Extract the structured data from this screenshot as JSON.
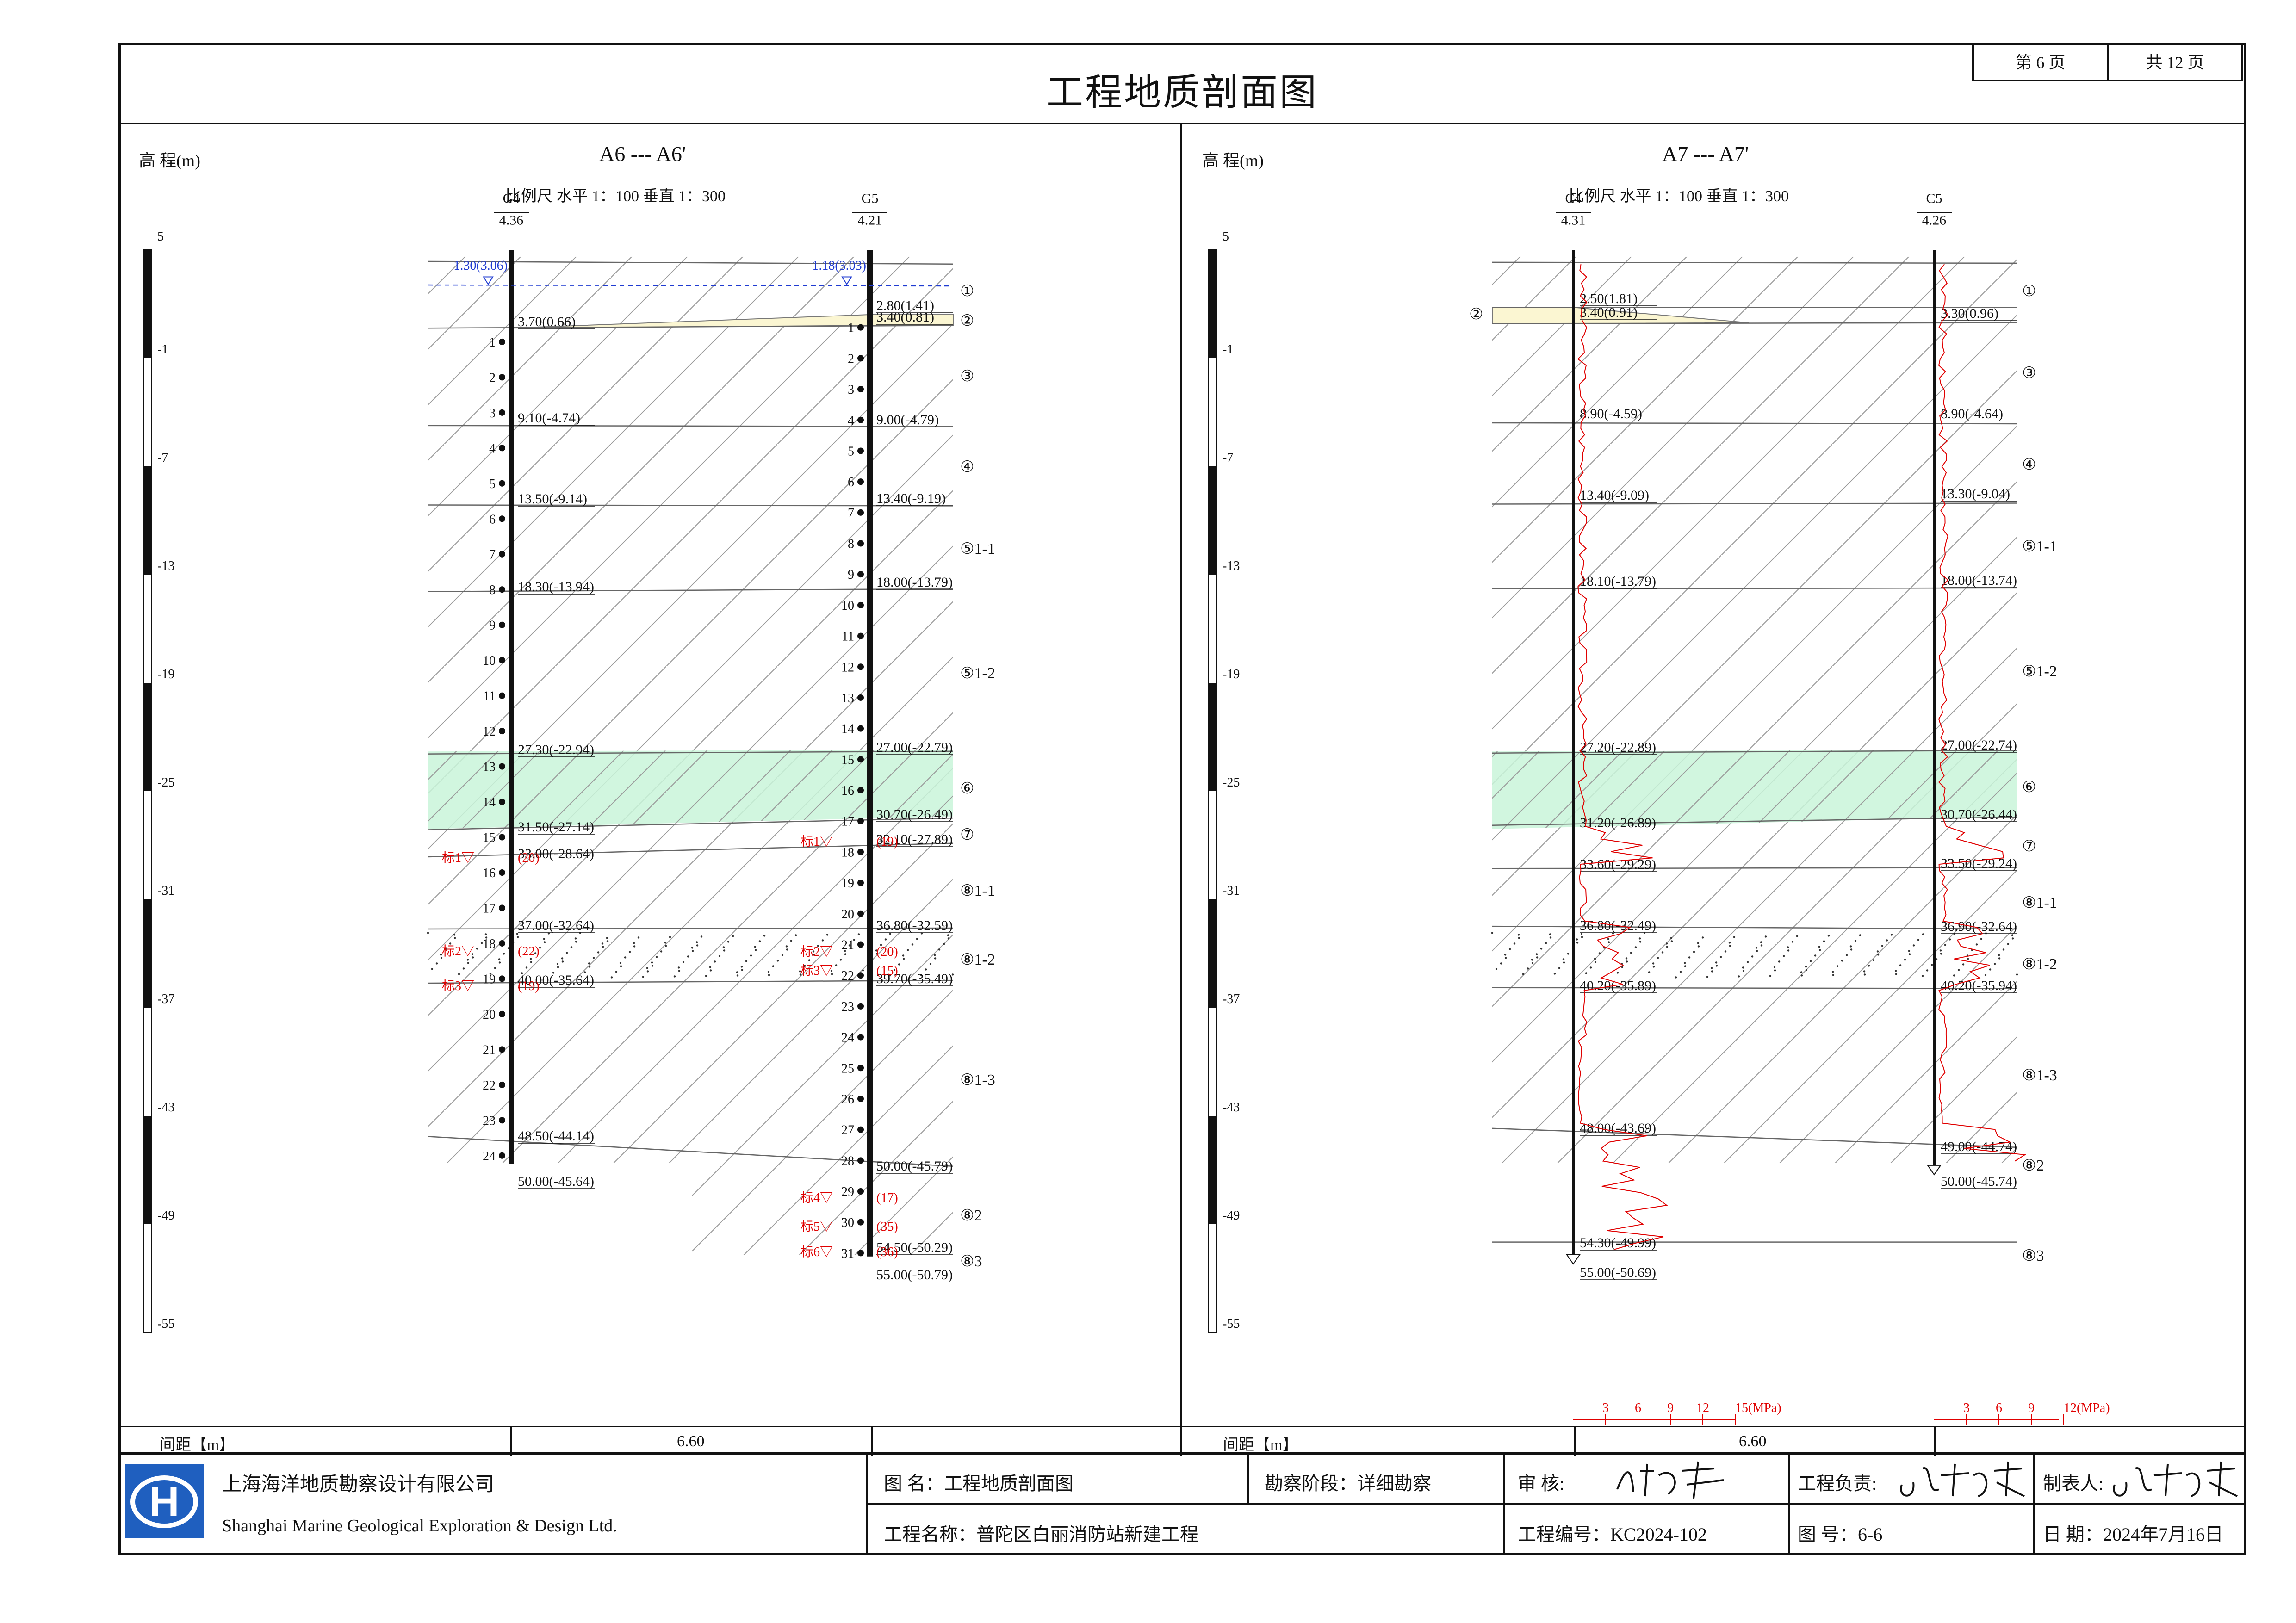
{
  "page": {
    "current_label": "第 6 页",
    "total_label": "共 12 页"
  },
  "title": "工程地质剖面图",
  "panels": [
    {
      "elev_label": "高 程(m)",
      "section_label": "A6  ---  A6'",
      "scale_label": "比例尺    水平   1：100    垂直   1：300",
      "scale_ticks": [
        "5",
        "-1",
        "-7",
        "-13",
        "-19",
        "-25",
        "-31",
        "-37",
        "-43",
        "-49",
        "-55"
      ],
      "holes": [
        {
          "id": "G4",
          "elev": "4.36",
          "water": "1.30(3.06)"
        },
        {
          "id": "G5",
          "elev": "4.21",
          "water": "1.18(3.03)"
        }
      ],
      "depth_labels_left": [
        "3.70(0.66)",
        "9.10(-4.74)",
        "13.50(-9.14)",
        "18.30(-13.94)",
        "27.30(-22.94)",
        "31.50(-27.14)",
        "33.00(-28.64)",
        "37.00(-32.64)",
        "40.00(-35.64)",
        "48.50(-44.14)",
        "50.00(-45.64)"
      ],
      "depth_labels_right": [
        "2.80(1.41)",
        "3.40(0.81)",
        "9.00(-4.79)",
        "13.40(-9.19)",
        "18.00(-13.79)",
        "27.00(-22.79)",
        "30.70(-26.49)",
        "32.10(-27.89)",
        "36.80(-32.59)",
        "39.70(-35.49)",
        "50.00(-45.79)",
        "54.50(-50.29)",
        "55.00(-50.79)"
      ],
      "layer_labels": [
        "①",
        "②",
        "③",
        "④",
        "⑤1-1",
        "⑤1-2",
        "⑥",
        "⑦",
        "⑧1-1",
        "⑧1-2",
        "⑧1-3",
        "⑧2",
        "⑧3"
      ],
      "spt_left": [
        {
          "label": "标1",
          "value": "(20)"
        },
        {
          "label": "标2",
          "value": "(22)"
        },
        {
          "label": "标3",
          "value": "(19)"
        }
      ],
      "spt_right": [
        {
          "label": "标1",
          "value": "(19)"
        },
        {
          "label": "标2",
          "value": "(20)"
        },
        {
          "label": "标3",
          "value": "(15)"
        },
        {
          "label": "标4",
          "value": "(17)"
        },
        {
          "label": "标5",
          "value": "(35)"
        },
        {
          "label": "标6",
          "value": "(36)"
        }
      ],
      "spacing_label": "间距【m】",
      "spacing_value": "6.60"
    },
    {
      "elev_label": "高 程(m)",
      "section_label": "A7  ---  A7'",
      "scale_label": "比例尺    水平   1：100    垂直   1：300",
      "scale_ticks": [
        "5",
        "-1",
        "-7",
        "-13",
        "-19",
        "-25",
        "-31",
        "-37",
        "-43",
        "-49",
        "-55"
      ],
      "holes": [
        {
          "id": "C4",
          "elev": "4.31"
        },
        {
          "id": "C5",
          "elev": "4.26"
        }
      ],
      "depth_labels_left": [
        "2.50(1.81)",
        "3.40(0.91)",
        "8.90(-4.59)",
        "13.40(-9.09)",
        "18.10(-13.79)",
        "27.20(-22.89)",
        "31.20(-26.89)",
        "33.60(-29.29)",
        "36.80(-32.49)",
        "40.20(-35.89)",
        "48.00(-43.69)",
        "54.30(-49.99)",
        "55.00(-50.69)"
      ],
      "depth_labels_right": [
        "3.30(0.96)",
        "8.90(-4.64)",
        "13.30(-9.04)",
        "18.00(-13.74)",
        "27.00(-22.74)",
        "30.70(-26.44)",
        "33.50(-29.24)",
        "36.90(-32.64)",
        "40.20(-35.94)",
        "49.00(-44.74)",
        "50.00(-45.74)"
      ],
      "layer_labels": [
        "①",
        "②",
        "③",
        "④",
        "⑤1-1",
        "⑤1-2",
        "⑥",
        "⑦",
        "⑧1-1",
        "⑧1-2",
        "⑧1-3",
        "⑧2",
        "⑧3"
      ],
      "cpt_scale_left": [
        "3",
        "6",
        "9",
        "12",
        "15(MPa)"
      ],
      "cpt_scale_right": [
        "3",
        "6",
        "9",
        "12(MPa)"
      ],
      "spacing_label": "间距【m】",
      "spacing_value": "6.60"
    }
  ],
  "titleblock": {
    "company_cn": "上海海洋地质勘察设计有限公司",
    "company_en": "Shanghai Marine Geological Exploration & Design Ltd.",
    "logo_letter": "H",
    "drawing_name": "图    名：工程地质剖面图",
    "stage": "勘察阶段：详细勘察",
    "reviewer": "审    核:",
    "reviewer_sig": "戴斌",
    "pm": "工程负责:",
    "pm_sig": "王伟杰",
    "maker": "制表人:",
    "maker_sig": "王伟杰",
    "project_name": "工程名称：普陀区白丽消防站新建工程",
    "project_no": "工程编号：KC2024-102",
    "drawing_no": "图    号：6-6",
    "date": "日  期：2024年7月16日"
  }
}
